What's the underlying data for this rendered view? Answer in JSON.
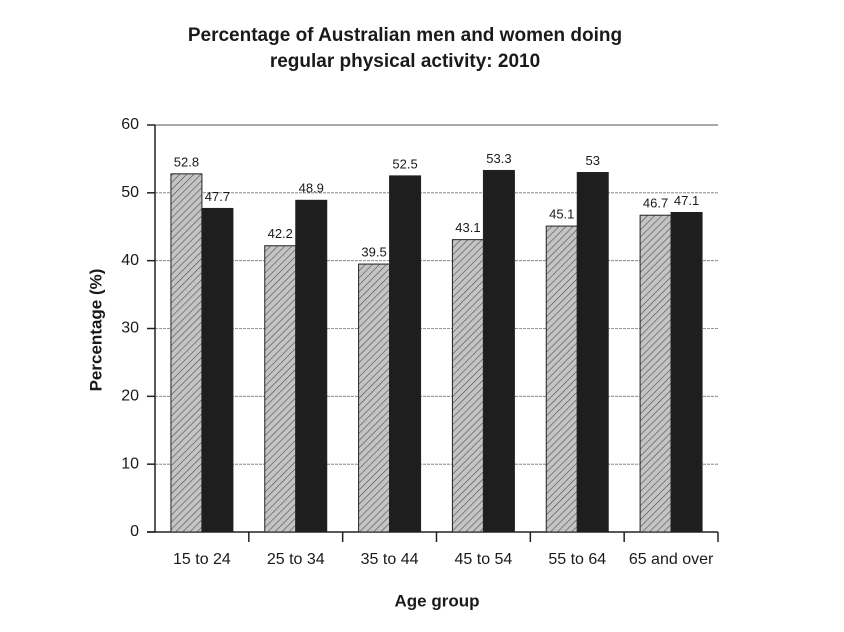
{
  "chart_data": {
    "type": "bar",
    "title": [
      "Percentage of Australian men and women doing",
      "regular physical activity: 2010"
    ],
    "x_label": "Age group",
    "y_label": "Percentage (%)",
    "categories": [
      "15 to 24",
      "25 to 34",
      "35 to 44",
      "45 to 54",
      "55 to 64",
      "65 and over"
    ],
    "series": [
      {
        "color": "#c4c4c4",
        "hatch": true,
        "values": [
          52.8,
          42.2,
          39.5,
          43.1,
          45.1,
          46.7
        ]
      },
      {
        "color": "#1e1e1e",
        "hatch": false,
        "values": [
          47.7,
          48.9,
          52.5,
          53.3,
          53,
          47.1
        ]
      }
    ],
    "ylim": [
      0,
      60
    ],
    "yticks": [
      0,
      10,
      20,
      30,
      40,
      50,
      60
    ],
    "grid": true
  }
}
